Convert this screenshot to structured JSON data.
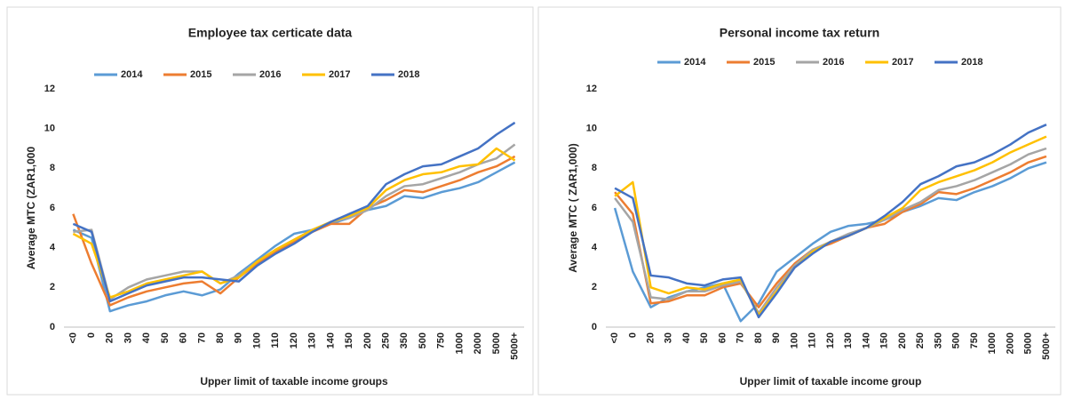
{
  "chart_data": [
    {
      "type": "line",
      "title": "Employee tax certicate data",
      "x_label": "Upper limit of taxable income groups",
      "y_label": "Average MTC (ZAR1,000",
      "categories": [
        "<0",
        "0",
        "20",
        "30",
        "40",
        "50",
        "60",
        "70",
        "80",
        "90",
        "100",
        "110",
        "120",
        "130",
        "140",
        "150",
        "200",
        "250",
        "350",
        "500",
        "750",
        "1000",
        "2000",
        "5000",
        "5000+"
      ],
      "ylim": [
        0,
        12
      ],
      "yticks": [
        0,
        2,
        4,
        6,
        8,
        10,
        12
      ],
      "legend": "top",
      "series": [
        {
          "name": "2014",
          "color": "#5b9bd5",
          "values": [
            4.9,
            4.5,
            0.8,
            1.1,
            1.3,
            1.6,
            1.8,
            1.6,
            1.9,
            2.7,
            3.4,
            4.1,
            4.7,
            4.9,
            5.2,
            5.5,
            5.9,
            6.1,
            6.6,
            6.5,
            6.8,
            7.0,
            7.3,
            7.8,
            8.3
          ]
        },
        {
          "name": "2015",
          "color": "#ed7d31",
          "values": [
            5.7,
            3.2,
            1.1,
            1.5,
            1.8,
            2.0,
            2.2,
            2.3,
            1.7,
            2.5,
            3.2,
            3.8,
            4.3,
            4.8,
            5.2,
            5.2,
            6.0,
            6.4,
            6.9,
            6.8,
            7.1,
            7.4,
            7.8,
            8.1,
            8.6
          ]
        },
        {
          "name": "2016",
          "color": "#a5a5a5",
          "values": [
            4.8,
            4.9,
            1.4,
            2.0,
            2.4,
            2.6,
            2.8,
            2.8,
            2.2,
            2.6,
            3.3,
            3.9,
            4.4,
            4.9,
            5.3,
            5.5,
            5.9,
            6.6,
            7.1,
            7.2,
            7.5,
            7.8,
            8.2,
            8.5,
            9.2
          ]
        },
        {
          "name": "2017",
          "color": "#ffc000",
          "values": [
            4.7,
            4.2,
            1.5,
            1.8,
            2.2,
            2.4,
            2.6,
            2.8,
            2.2,
            2.5,
            3.3,
            3.9,
            4.4,
            4.9,
            5.3,
            5.6,
            6.0,
            6.9,
            7.4,
            7.7,
            7.8,
            8.1,
            8.2,
            9.0,
            8.4
          ]
        },
        {
          "name": "2018",
          "color": "#4472c4",
          "values": [
            5.2,
            4.8,
            1.3,
            1.7,
            2.1,
            2.3,
            2.5,
            2.5,
            2.4,
            2.3,
            3.1,
            3.7,
            4.2,
            4.8,
            5.3,
            5.7,
            6.1,
            7.2,
            7.7,
            8.1,
            8.2,
            8.6,
            9.0,
            9.7,
            10.3
          ]
        }
      ]
    },
    {
      "type": "line",
      "title": "Personal income tax return",
      "x_label": "Upper limit of taxable income group",
      "y_label": "Average MTC ( ZAR1,000)",
      "categories": [
        "<0",
        "0",
        "20",
        "30",
        "40",
        "50",
        "60",
        "70",
        "80",
        "90",
        "100",
        "110",
        "120",
        "130",
        "140",
        "150",
        "200",
        "250",
        "350",
        "500",
        "750",
        "1000",
        "2000",
        "5000",
        "5000+"
      ],
      "ylim": [
        0,
        12
      ],
      "yticks": [
        0,
        2,
        4,
        6,
        8,
        10,
        12
      ],
      "legend": "top",
      "series": [
        {
          "name": "2014",
          "color": "#5b9bd5",
          "values": [
            6.0,
            2.8,
            1.0,
            1.5,
            1.8,
            2.0,
            2.2,
            0.3,
            1.2,
            2.8,
            3.5,
            4.2,
            4.8,
            5.1,
            5.2,
            5.4,
            5.8,
            6.1,
            6.5,
            6.4,
            6.8,
            7.1,
            7.5,
            8.0,
            8.3
          ]
        },
        {
          "name": "2015",
          "color": "#ed7d31",
          "values": [
            6.8,
            5.7,
            1.2,
            1.3,
            1.6,
            1.6,
            2.0,
            2.2,
            1.0,
            2.2,
            3.2,
            3.9,
            4.2,
            4.6,
            5.0,
            5.2,
            5.8,
            6.2,
            6.8,
            6.7,
            7.0,
            7.4,
            7.8,
            8.3,
            8.6
          ]
        },
        {
          "name": "2016",
          "color": "#a5a5a5",
          "values": [
            6.5,
            5.3,
            1.5,
            1.4,
            1.8,
            1.8,
            2.1,
            2.3,
            0.7,
            2.0,
            3.1,
            3.9,
            4.3,
            4.7,
            5.0,
            5.4,
            5.9,
            6.3,
            6.9,
            7.1,
            7.4,
            7.8,
            8.2,
            8.7,
            9.0
          ]
        },
        {
          "name": "2017",
          "color": "#ffc000",
          "values": [
            6.6,
            7.3,
            2.0,
            1.7,
            2.0,
            1.9,
            2.2,
            2.4,
            0.6,
            1.8,
            3.0,
            3.8,
            4.3,
            4.6,
            5.0,
            5.5,
            6.0,
            6.9,
            7.3,
            7.6,
            7.9,
            8.3,
            8.8,
            9.2,
            9.6
          ]
        },
        {
          "name": "2018",
          "color": "#4472c4",
          "values": [
            7.0,
            6.5,
            2.6,
            2.5,
            2.2,
            2.1,
            2.4,
            2.5,
            0.5,
            1.7,
            3.0,
            3.7,
            4.3,
            4.6,
            5.0,
            5.6,
            6.3,
            7.2,
            7.6,
            8.1,
            8.3,
            8.7,
            9.2,
            9.8,
            10.2
          ]
        }
      ]
    }
  ]
}
